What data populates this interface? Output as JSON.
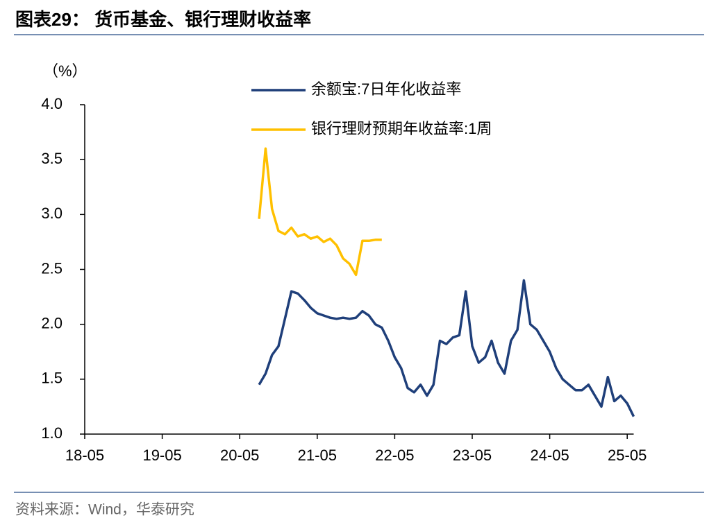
{
  "chart_data": {
    "type": "line",
    "title": "图表29：  货币基金、银行理财收益率",
    "y_label": "（%）",
    "source": "资料来源：Wind，华泰研究",
    "x": [
      "20-08",
      "20-09",
      "20-10",
      "20-11",
      "20-12",
      "21-01",
      "21-02",
      "21-03",
      "21-04",
      "21-05",
      "21-06",
      "21-07",
      "21-08",
      "21-09",
      "21-10",
      "21-11",
      "21-12",
      "22-01",
      "22-02",
      "22-03",
      "22-04",
      "22-05",
      "22-06",
      "22-07",
      "22-08",
      "22-09",
      "22-10",
      "22-11",
      "22-12",
      "23-01",
      "23-02",
      "23-03",
      "23-04",
      "23-05",
      "23-06",
      "23-07",
      "23-08",
      "23-09",
      "23-10",
      "23-11",
      "23-12",
      "24-01",
      "24-02",
      "24-03",
      "24-04",
      "24-05",
      "24-06",
      "24-07",
      "24-08",
      "24-09",
      "24-10",
      "24-11",
      "24-12",
      "25-01",
      "25-02",
      "25-03",
      "25-04",
      "25-05",
      "25-06"
    ],
    "series": [
      {
        "name": "余额宝:7日年化收益率",
        "color": "#1f3f7a",
        "values": [
          1.45,
          1.55,
          1.72,
          1.8,
          2.05,
          2.3,
          2.28,
          2.22,
          2.15,
          2.1,
          2.08,
          2.06,
          2.05,
          2.06,
          2.05,
          2.06,
          2.12,
          2.08,
          2.0,
          1.97,
          1.85,
          1.7,
          1.6,
          1.42,
          1.38,
          1.45,
          1.35,
          1.45,
          1.85,
          1.82,
          1.88,
          1.9,
          2.3,
          1.8,
          1.65,
          1.7,
          1.85,
          1.65,
          1.55,
          1.85,
          1.95,
          2.4,
          2.0,
          1.95,
          1.85,
          1.75,
          1.6,
          1.5,
          1.45,
          1.4,
          1.4,
          1.45,
          1.35,
          1.25,
          1.52,
          1.3,
          1.35,
          1.28,
          1.16
        ]
      },
      {
        "name": "银行理财预期年收益率:1周",
        "color": "#ffc000",
        "values": [
          2.96,
          3.6,
          3.05,
          2.85,
          2.82,
          2.88,
          2.8,
          2.82,
          2.78,
          2.8,
          2.75,
          2.78,
          2.72,
          2.6,
          2.55,
          2.45,
          2.76,
          2.76,
          2.77,
          2.77,
          null,
          null,
          null,
          null,
          null,
          null,
          null,
          null,
          null,
          null,
          null,
          null,
          null,
          null,
          null,
          null,
          null,
          null,
          null,
          null,
          null,
          null,
          null,
          null,
          null,
          null,
          null,
          null,
          null,
          null,
          null,
          null,
          null,
          null,
          null,
          null,
          null,
          null,
          null
        ]
      }
    ],
    "xlim": [
      "18-05",
      "25-06"
    ],
    "xticks": [
      "18-05",
      "19-05",
      "20-05",
      "21-05",
      "22-05",
      "23-05",
      "24-05",
      "25-05"
    ],
    "ylim": [
      1.0,
      4.0
    ],
    "yticks": [
      {
        "value": 1.0,
        "label": "1.0"
      },
      {
        "value": 1.5,
        "label": "1.5"
      },
      {
        "value": 2.0,
        "label": "2.0"
      },
      {
        "value": 2.5,
        "label": "2.5"
      },
      {
        "value": 3.0,
        "label": "3.0"
      },
      {
        "value": 3.5,
        "label": "3.5"
      },
      {
        "value": 4.0,
        "label": "4.0"
      }
    ]
  }
}
